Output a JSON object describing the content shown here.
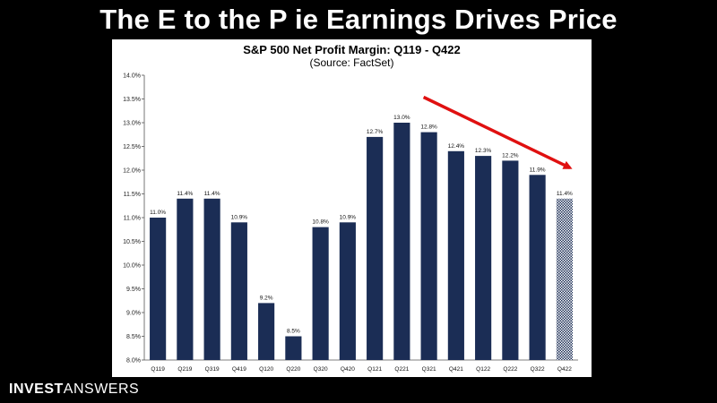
{
  "slide": {
    "headline": "The E to the P ie Earnings Drives Price",
    "brand_bold": "INVEST",
    "brand_light": "ANSWERS"
  },
  "chart_data": {
    "type": "bar",
    "title": "S&P 500 Net Profit Margin: Q119 - Q422",
    "subtitle": "(Source: FactSet)",
    "xlabel": "",
    "ylabel": "",
    "ylim": [
      8.0,
      14.0
    ],
    "y_ticks": [
      "8.0%",
      "8.5%",
      "9.0%",
      "9.5%",
      "10.0%",
      "10.5%",
      "11.0%",
      "11.5%",
      "12.0%",
      "12.5%",
      "13.0%",
      "13.5%",
      "14.0%"
    ],
    "categories": [
      "Q119",
      "Q219",
      "Q319",
      "Q419",
      "Q120",
      "Q220",
      "Q320",
      "Q420",
      "Q121",
      "Q221",
      "Q321",
      "Q421",
      "Q122",
      "Q222",
      "Q322",
      "Q422"
    ],
    "values": [
      11.0,
      11.4,
      11.4,
      10.9,
      9.2,
      8.5,
      10.8,
      10.9,
      12.7,
      13.0,
      12.8,
      12.4,
      12.3,
      12.2,
      11.9,
      11.4
    ],
    "labels": [
      "11.0%",
      "11.4%",
      "11.4%",
      "10.9%",
      "9.2%",
      "8.5%",
      "10.8%",
      "10.9%",
      "12.7%",
      "13.0%",
      "12.8%",
      "12.4%",
      "12.3%",
      "12.2%",
      "11.9%",
      "11.4%"
    ],
    "estimate_index": 15,
    "bar_color": "#1b2d55",
    "estimate_color": "#8e9bb5",
    "arrow_color": "#e01010",
    "arrow": "red arrow pointing down from Q321 toward Q422",
    "grid": false,
    "legend": "none"
  }
}
